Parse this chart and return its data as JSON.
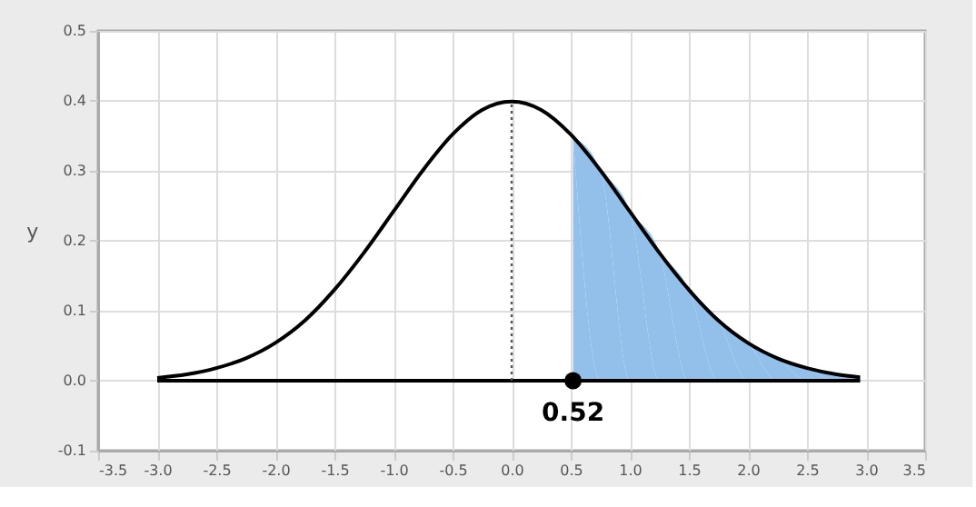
{
  "chart_data": {
    "type": "line",
    "ylabel": "y",
    "xlim": [
      -3.5,
      3.5
    ],
    "xticks": [
      -3.5,
      {
        "value": -3,
        "label": "-3.0"
      },
      -2.5,
      {
        "value": -2,
        "label": "-2.0"
      },
      -1.5,
      {
        "value": -1,
        "label": "-1.0"
      },
      -0.5,
      {
        "value": 0,
        "label": "0.0"
      },
      0.5,
      {
        "value": 1,
        "label": "1.0"
      },
      1.5,
      {
        "value": 2,
        "label": "2.0"
      },
      2.5,
      {
        "value": 3,
        "label": "3.0"
      },
      3.5
    ],
    "ylim": [
      -0.1,
      0.5
    ],
    "yticks": [
      -0.1,
      {
        "value": 0,
        "label": "0.0"
      },
      0.1,
      0.2,
      0.3,
      0.4,
      0.5
    ],
    "grid": true,
    "series": [
      {
        "type": "area",
        "color": "#92c0ea",
        "x": [
          0.52,
          0.75,
          1,
          1.25,
          1.5,
          1.75,
          2,
          2.25,
          2.5,
          2.75,
          2.95
        ],
        "values": [
          0.348,
          0.301,
          0.242,
          0.183,
          0.13,
          0.086,
          0.054,
          0.032,
          0.018,
          0.009,
          0.005
        ]
      },
      {
        "color": "#000000",
        "line_style": "solid",
        "x": [
          -3,
          -2.75,
          -2.5,
          -2.25,
          -2,
          -1.75,
          -1.5,
          -1.25,
          -1,
          -0.75,
          -0.5,
          -0.25,
          0,
          0.25,
          0.5,
          0.75,
          1,
          1.25,
          1.5,
          1.75,
          2,
          2.25,
          2.5,
          2.75,
          2.95
        ],
        "values": [
          0.004,
          0.009,
          0.018,
          0.032,
          0.054,
          0.086,
          0.13,
          0.183,
          0.242,
          0.301,
          0.352,
          0.387,
          0.399,
          0.387,
          0.352,
          0.301,
          0.242,
          0.183,
          0.13,
          0.086,
          0.054,
          0.032,
          0.018,
          0.009,
          0.005
        ]
      },
      {
        "color": "#000000",
        "line_style": "solid",
        "x": [
          -3,
          2.95
        ],
        "values": [
          0,
          0
        ]
      },
      {
        "type": "line",
        "color": "#555555",
        "line_style": "dotted",
        "x": [
          0,
          0
        ],
        "values": [
          0,
          0.4
        ]
      },
      {
        "type": "scatter",
        "color": "#000000",
        "marker": "circle",
        "x": [
          0.52
        ],
        "values": [
          0
        ]
      }
    ],
    "annotations": [
      {
        "text": "0.52",
        "x": 0.52,
        "y": 0
      }
    ]
  }
}
